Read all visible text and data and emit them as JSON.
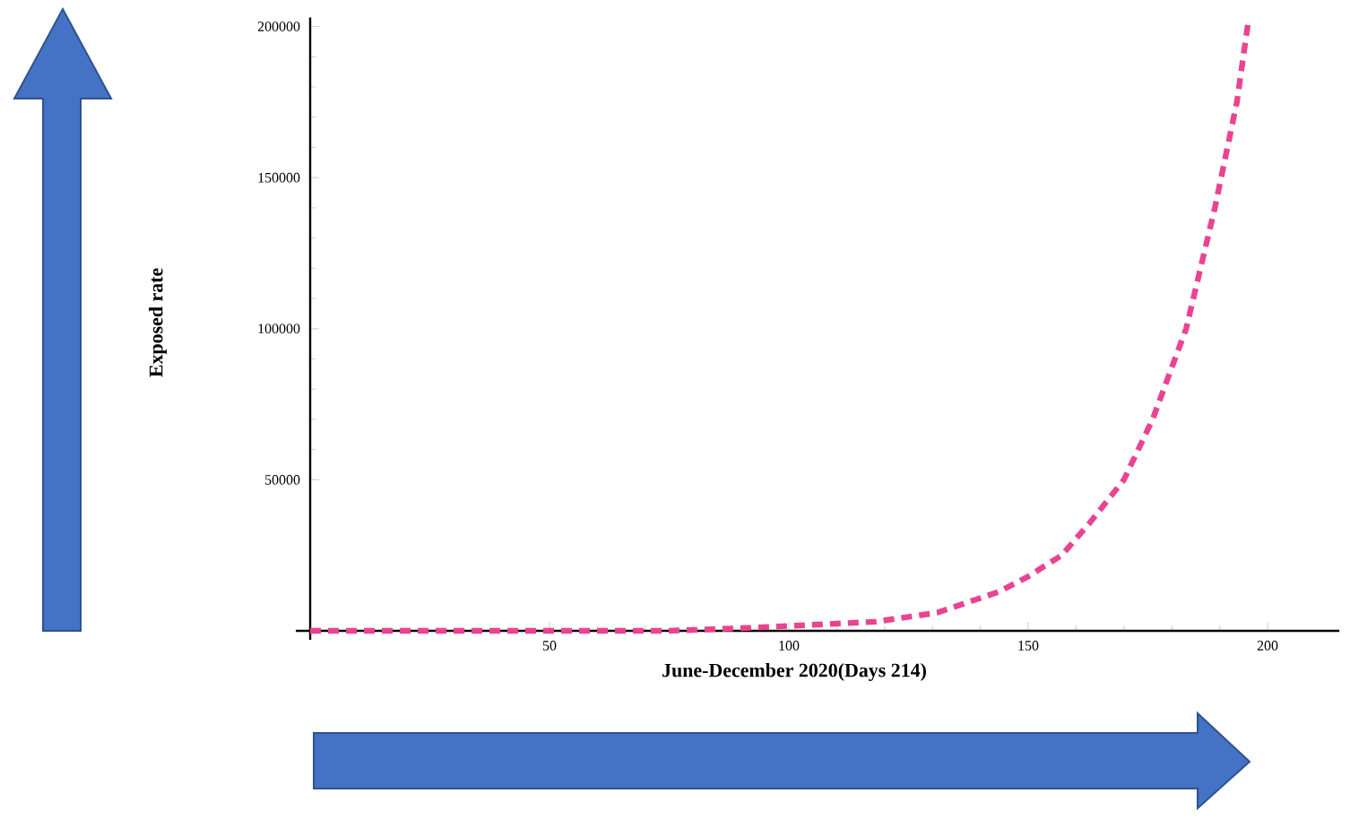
{
  "chart_data": {
    "type": "line",
    "xlabel": "June-December 2020(Days 214)",
    "ylabel": "Exposed rate",
    "x": [
      0,
      25,
      50,
      75,
      92,
      105,
      118,
      131,
      144,
      150,
      157,
      163,
      170,
      176,
      183,
      189,
      193.6,
      196
    ],
    "series": [
      {
        "color": "#ea4391",
        "values": [
          0,
          0,
          0,
          0,
          1000,
          2000,
          3000,
          6000,
          13000,
          18000,
          25000,
          36000,
          50000,
          70000,
          100000,
          140000,
          175000,
          202000
        ]
      }
    ],
    "xlim": [
      -3,
      215
    ],
    "ylim": [
      -3000,
      203000
    ],
    "xticks": [
      50,
      100,
      150,
      200
    ],
    "yticks": [
      50000,
      100000,
      150000,
      200000
    ],
    "line_style": "dashed"
  }
}
